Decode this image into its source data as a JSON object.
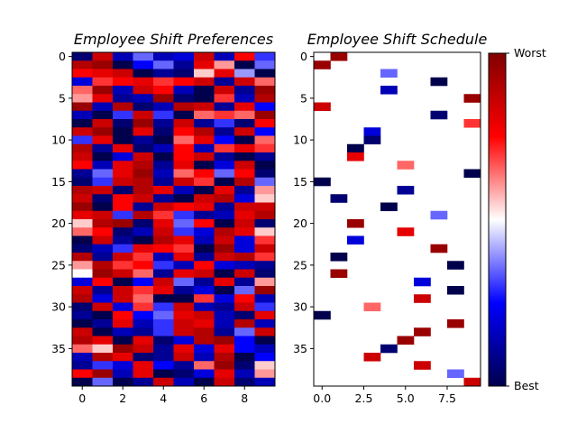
{
  "chart_data": [
    {
      "type": "heatmap",
      "title": "Employee Shift Preferences",
      "rows": 40,
      "cols": 10,
      "cmap": "seismic",
      "xticks": [
        0,
        2,
        4,
        6,
        8
      ],
      "xtick_labels": [
        "0",
        "2",
        "4",
        "6",
        "8"
      ],
      "yticks": [
        0,
        5,
        10,
        15,
        20,
        25,
        30,
        35
      ],
      "ytick_labels": [
        "0",
        "5",
        "10",
        "15",
        "20",
        "25",
        "30",
        "35"
      ],
      "values": [
        [
          0.05,
          0.85,
          0.15,
          0.35,
          0.15,
          0.2,
          0.85,
          0.15,
          0.75,
          0.3
        ],
        [
          0.9,
          0.95,
          0.0,
          0.25,
          0.35,
          0.1,
          0.8,
          0.6,
          0.0,
          0.35
        ],
        [
          0.75,
          0.8,
          0.85,
          0.0,
          0.1,
          0.05,
          0.55,
          0.8,
          0.4,
          0.0
        ],
        [
          0.2,
          0.7,
          0.75,
          0.8,
          0.7,
          0.75,
          0.85,
          0.1,
          0.85,
          0.65
        ],
        [
          0.65,
          0.95,
          0.15,
          0.85,
          0.75,
          0.15,
          0.0,
          0.85,
          0.1,
          0.95
        ],
        [
          0.6,
          0.8,
          0.1,
          0.15,
          0.95,
          0.05,
          0.0,
          0.7,
          0.15,
          0.9
        ],
        [
          0.95,
          0.15,
          0.9,
          0.05,
          0.15,
          0.9,
          0.85,
          0.1,
          0.8,
          0.25
        ],
        [
          0.15,
          0.0,
          0.3,
          0.85,
          0.3,
          0.0,
          0.65,
          0.7,
          0.65,
          0.95
        ],
        [
          0.0,
          0.85,
          0.05,
          0.95,
          0.1,
          0.85,
          0.1,
          0.3,
          0.05,
          0.75
        ],
        [
          0.85,
          0.95,
          0.0,
          0.8,
          0.05,
          0.75,
          0.9,
          0.1,
          0.85,
          0.25
        ],
        [
          0.3,
          0.8,
          0.0,
          0.1,
          0.0,
          0.65,
          0.8,
          0.25,
          0.0,
          0.65
        ],
        [
          0.9,
          0.1,
          0.8,
          0.05,
          0.15,
          0.75,
          0.15,
          0.7,
          0.8,
          0.7
        ],
        [
          0.85,
          0.0,
          0.2,
          0.85,
          0.0,
          0.75,
          0.85,
          0.1,
          0.0,
          0.1
        ],
        [
          0.75,
          0.15,
          0.8,
          0.9,
          0.1,
          0.8,
          0.0,
          0.2,
          0.85,
          0.0
        ],
        [
          0.1,
          0.35,
          0.8,
          0.95,
          0.15,
          0.65,
          0.75,
          0.35,
          0.75,
          0.05
        ],
        [
          0.05,
          0.3,
          0.85,
          0.9,
          0.1,
          0.85,
          0.7,
          0.0,
          0.9,
          0.35
        ],
        [
          0.9,
          0.85,
          0.05,
          0.9,
          0.8,
          0.15,
          0.0,
          0.8,
          0.1,
          0.6
        ],
        [
          0.85,
          0.05,
          0.75,
          0.85,
          0.1,
          0.0,
          0.85,
          0.9,
          0.2,
          0.55
        ],
        [
          0.95,
          0.0,
          0.75,
          0.1,
          0.85,
          0.75,
          0.8,
          0.1,
          0.85,
          0.85
        ],
        [
          0.8,
          0.85,
          0.3,
          0.9,
          0.7,
          0.3,
          0.1,
          0.15,
          0.8,
          0.9
        ],
        [
          0.55,
          0.9,
          0.95,
          0.05,
          0.8,
          0.35,
          0.75,
          0.0,
          0.85,
          0.05
        ],
        [
          0.65,
          0.75,
          0.05,
          0.15,
          0.85,
          0.3,
          0.2,
          0.9,
          0.8,
          0.55
        ],
        [
          0.0,
          0.85,
          0.1,
          0.0,
          0.9,
          0.8,
          0.15,
          0.85,
          0.2,
          0.7
        ],
        [
          0.05,
          0.15,
          0.3,
          0.8,
          0.75,
          0.7,
          0.0,
          0.95,
          0.2,
          0.85
        ],
        [
          0.9,
          0.1,
          0.85,
          0.7,
          0.15,
          0.8,
          0.1,
          0.85,
          0.9,
          0.7
        ],
        [
          0.6,
          0.9,
          0.7,
          0.75,
          0.3,
          0.15,
          0.75,
          0.2,
          0.15,
          0.1
        ],
        [
          0.5,
          0.95,
          0.85,
          0.65,
          0.1,
          0.8,
          0.85,
          0.0,
          0.85,
          0.05
        ],
        [
          0.2,
          0.75,
          0.0,
          0.25,
          0.85,
          0.35,
          0.1,
          0.8,
          0.1,
          0.6
        ],
        [
          0.85,
          0.1,
          0.85,
          0.7,
          0.8,
          0.1,
          0.2,
          0.0,
          0.35,
          0.95
        ],
        [
          0.9,
          0.2,
          0.85,
          0.65,
          0.0,
          0.0,
          0.7,
          0.2,
          0.75,
          0.15
        ],
        [
          0.05,
          0.85,
          0.2,
          0.7,
          0.3,
          0.85,
          0.15,
          0.1,
          0.85,
          0.3
        ],
        [
          0.1,
          0.0,
          0.75,
          0.25,
          0.35,
          0.8,
          0.85,
          0.15,
          0.05,
          0.8
        ],
        [
          0.0,
          0.1,
          0.8,
          0.15,
          0.3,
          0.85,
          0.8,
          0.15,
          0.9,
          0.15
        ],
        [
          0.85,
          0.0,
          0.15,
          0.1,
          0.3,
          0.85,
          0.9,
          0.1,
          0.35,
          0.85
        ],
        [
          0.9,
          0.8,
          0.0,
          0.8,
          0.05,
          0.2,
          0.9,
          0.95,
          0.25,
          0.0
        ],
        [
          0.65,
          0.55,
          0.95,
          0.85,
          0.1,
          0.8,
          0.2,
          0.8,
          0.25,
          0.15
        ],
        [
          0.15,
          0.9,
          0.8,
          0.05,
          0.1,
          0.85,
          0.15,
          0.9,
          0.0,
          0.25
        ],
        [
          0.1,
          0.3,
          0.2,
          0.8,
          0.25,
          0.1,
          0.65,
          0.95,
          0.05,
          0.55
        ],
        [
          0.75,
          0.95,
          0.15,
          0.8,
          0.0,
          0.05,
          0.2,
          0.8,
          0.15,
          0.6
        ],
        [
          0.0,
          0.35,
          0.0,
          0.1,
          0.85,
          0.15,
          0.0,
          0.85,
          0.05,
          0.15
        ]
      ]
    },
    {
      "type": "heatmap",
      "title": "Employee Shift Schedule",
      "rows": 40,
      "cols": 10,
      "cmap": "seismic",
      "background": "#ffffff",
      "xticks": [
        0,
        2.5,
        5,
        7.5
      ],
      "xtick_labels": [
        "0.0",
        "2.5",
        "5.0",
        "7.5"
      ],
      "yticks": [
        0,
        5,
        10,
        15,
        20,
        25,
        30,
        35
      ],
      "ytick_labels": [
        "0",
        "5",
        "10",
        "15",
        "20",
        "25",
        "30",
        "35"
      ],
      "assignments": [
        {
          "row": 0,
          "col": 1,
          "value": 0.95
        },
        {
          "row": 1,
          "col": 0,
          "value": 0.95
        },
        {
          "row": 2,
          "col": 4,
          "value": 0.35
        },
        {
          "row": 3,
          "col": 7,
          "value": 0.0
        },
        {
          "row": 4,
          "col": 4,
          "value": 0.15
        },
        {
          "row": 5,
          "col": 9,
          "value": 0.95
        },
        {
          "row": 6,
          "col": 0,
          "value": 0.85
        },
        {
          "row": 7,
          "col": 7,
          "value": 0.05
        },
        {
          "row": 8,
          "col": 9,
          "value": 0.7
        },
        {
          "row": 9,
          "col": 3,
          "value": 0.2
        },
        {
          "row": 10,
          "col": 3,
          "value": 0.05
        },
        {
          "row": 11,
          "col": 2,
          "value": 0.0
        },
        {
          "row": 12,
          "col": 2,
          "value": 0.8
        },
        {
          "row": 13,
          "col": 5,
          "value": 0.65
        },
        {
          "row": 14,
          "col": 9,
          "value": 0.0
        },
        {
          "row": 15,
          "col": 0,
          "value": 0.0
        },
        {
          "row": 16,
          "col": 5,
          "value": 0.1
        },
        {
          "row": 17,
          "col": 1,
          "value": 0.05
        },
        {
          "row": 18,
          "col": 4,
          "value": 0.0
        },
        {
          "row": 19,
          "col": 7,
          "value": 0.35
        },
        {
          "row": 20,
          "col": 2,
          "value": 0.95
        },
        {
          "row": 21,
          "col": 5,
          "value": 0.8
        },
        {
          "row": 22,
          "col": 2,
          "value": 0.2
        },
        {
          "row": 23,
          "col": 7,
          "value": 0.95
        },
        {
          "row": 24,
          "col": 1,
          "value": 0.0
        },
        {
          "row": 25,
          "col": 8,
          "value": 0.0
        },
        {
          "row": 26,
          "col": 1,
          "value": 0.95
        },
        {
          "row": 27,
          "col": 6,
          "value": 0.2
        },
        {
          "row": 28,
          "col": 8,
          "value": 0.0
        },
        {
          "row": 29,
          "col": 6,
          "value": 0.85
        },
        {
          "row": 30,
          "col": 3,
          "value": 0.65
        },
        {
          "row": 31,
          "col": 0,
          "value": 0.0
        },
        {
          "row": 32,
          "col": 8,
          "value": 0.95
        },
        {
          "row": 33,
          "col": 6,
          "value": 0.95
        },
        {
          "row": 34,
          "col": 5,
          "value": 0.95
        },
        {
          "row": 35,
          "col": 4,
          "value": 0.05
        },
        {
          "row": 36,
          "col": 3,
          "value": 0.85
        },
        {
          "row": 37,
          "col": 6,
          "value": 0.85
        },
        {
          "row": 38,
          "col": 8,
          "value": 0.35
        },
        {
          "row": 39,
          "col": 9,
          "value": 0.85
        }
      ]
    }
  ],
  "colorbar": {
    "cmap": "seismic",
    "top_label": "Worst",
    "bottom_label": "Best"
  }
}
